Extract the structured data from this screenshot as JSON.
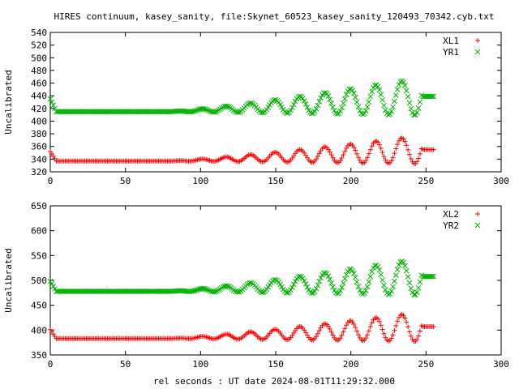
{
  "figure": {
    "title": "HIRES continuum, kasey_sanity, file:Skynet_60523_kasey_sanity_120493_70342.cyb.txt",
    "shared_xlabel": "rel seconds : UT date 2024-08-01T11:29:32.000"
  },
  "colors": {
    "red": "#ff0000",
    "green": "#00b000",
    "axis": "#000000"
  },
  "chart_data": [
    {
      "type": "scatter",
      "title": "HIRES continuum, kasey_sanity, file:Skynet_60523_kasey_sanity_120493_70342.cyb.txt",
      "xlabel": "",
      "ylabel": "Uncalibrated",
      "xlim": [
        0,
        300
      ],
      "ylim": [
        320,
        540
      ],
      "xticks": [
        "0",
        "50",
        "100",
        "150",
        "200",
        "250",
        "300"
      ],
      "yticks": [
        "320",
        "340",
        "360",
        "380",
        "400",
        "420",
        "440",
        "460",
        "480",
        "500",
        "520",
        "540"
      ],
      "legend_position": "top-right",
      "grid": false,
      "series": [
        {
          "name": "XL1",
          "marker": "+",
          "color": "#ff0000",
          "base": 337,
          "amplitude_max": 45,
          "start_offset": 15
        },
        {
          "name": "YR1",
          "marker": "x",
          "color": "#00b000",
          "base": 415,
          "amplitude_max": 60,
          "start_offset": 20
        }
      ]
    },
    {
      "type": "scatter",
      "title": "",
      "xlabel": "rel seconds : UT date 2024-08-01T11:29:32.000",
      "ylabel": "Uncalibrated",
      "xlim": [
        0,
        300
      ],
      "ylim": [
        350,
        650
      ],
      "xticks": [
        "0",
        "50",
        "100",
        "150",
        "200",
        "250",
        "300"
      ],
      "yticks": [
        "350",
        "400",
        "450",
        "500",
        "550",
        "600",
        "650"
      ],
      "legend_position": "top-right",
      "grid": false,
      "series": [
        {
          "name": "XL2",
          "marker": "+",
          "color": "#ff0000",
          "base": 383,
          "amplitude_max": 60,
          "start_offset": 18
        },
        {
          "name": "YR2",
          "marker": "x",
          "color": "#00b000",
          "base": 478,
          "amplitude_max": 75,
          "start_offset": 20
        }
      ]
    }
  ],
  "series_shape": {
    "x_start": 0,
    "x_end": 255,
    "x_step": 1.0,
    "oscillation_start": 80,
    "period_start": 15,
    "period_end": 17.5,
    "settle_at": 248
  }
}
